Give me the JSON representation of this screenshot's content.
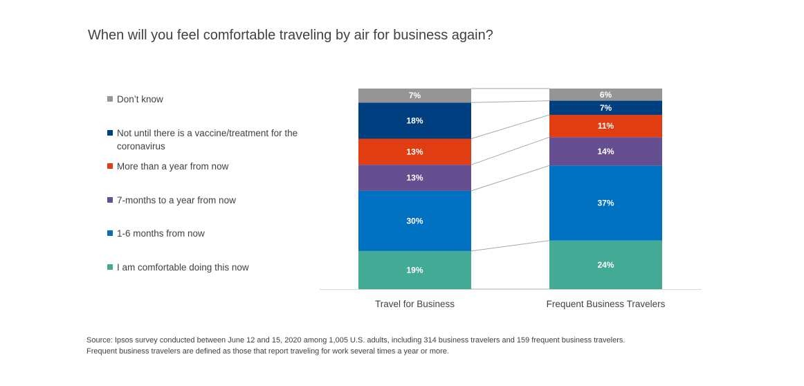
{
  "title": "When will you feel comfortable traveling by air for business again?",
  "chart_data": {
    "type": "bar",
    "stacked": true,
    "categories": [
      "Travel for Business",
      "Frequent Business Travelers"
    ],
    "series": [
      {
        "name": "I am comfortable doing this now",
        "color": "#43AA95",
        "values": [
          19,
          24
        ],
        "labels": [
          "19%",
          "24%"
        ]
      },
      {
        "name": "1-6 months from now",
        "color": "#0070C0",
        "values": [
          30,
          37
        ],
        "labels": [
          "30%",
          "37%"
        ]
      },
      {
        "name": "7-months to a year from now",
        "color": "#654F91",
        "values": [
          13,
          14
        ],
        "labels": [
          "13%",
          "14%"
        ]
      },
      {
        "name": "More than a year from now",
        "color": "#E03E12",
        "values": [
          13,
          11
        ],
        "labels": [
          "13%",
          "11%"
        ]
      },
      {
        "name": "Not until there is a vaccine/treatment for the coronavirus",
        "color": "#003F7F",
        "values": [
          18,
          7
        ],
        "labels": [
          "18%",
          "7%"
        ]
      },
      {
        "name": "Don’t know",
        "color": "#959595",
        "values": [
          7,
          6
        ],
        "labels": [
          "7%",
          "6%"
        ]
      }
    ],
    "legend_position": "left",
    "series_connector_lines": true
  },
  "legend": [
    {
      "label": "Don’t know",
      "color": "#959595"
    },
    {
      "label": "Not until there is a vaccine/treatment for the coronavirus",
      "color": "#003F7F"
    },
    {
      "label": "More than a year from now",
      "color": "#E03E12"
    },
    {
      "label": "7-months to a year from now",
      "color": "#654F91"
    },
    {
      "label": "1-6 months from now",
      "color": "#0070C0"
    },
    {
      "label": "I am comfortable doing this now",
      "color": "#43AA95"
    }
  ],
  "source": {
    "line1": "Source: Ipsos survey conducted between June 12 and 15, 2020 among 1,005 U.S. adults, including 314 business travelers and 159 frequent business travelers.",
    "line2": "Frequent business travelers are defined as those that report traveling for work several times a year or more."
  }
}
